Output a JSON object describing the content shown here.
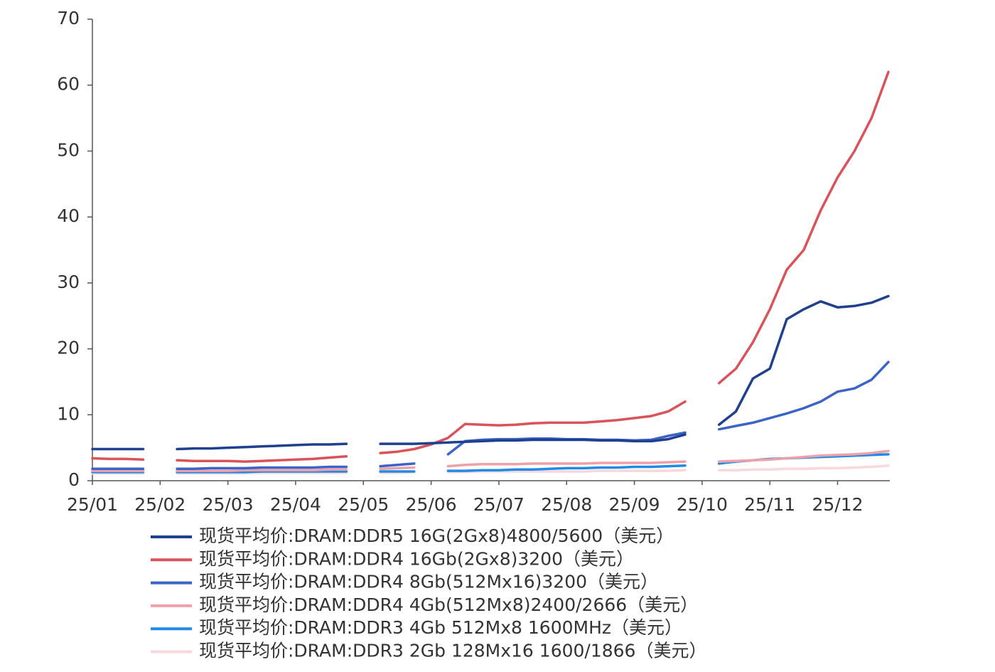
{
  "chart_data": {
    "type": "line",
    "categories": [
      "25/01",
      null,
      null,
      null,
      "25/02",
      null,
      null,
      null,
      "25/03",
      null,
      null,
      null,
      "25/04",
      null,
      null,
      null,
      "25/05",
      null,
      null,
      null,
      "25/06",
      null,
      null,
      null,
      "25/07",
      null,
      null,
      null,
      "25/08",
      null,
      null,
      null,
      "25/09",
      null,
      null,
      null,
      "25/10",
      null,
      null,
      null,
      "25/11",
      null,
      null,
      null,
      "25/12",
      null,
      null,
      null
    ],
    "ylim": [
      0,
      70
    ],
    "yticks": [
      0,
      10,
      20,
      30,
      40,
      50,
      60,
      70
    ],
    "grid": false,
    "legend": "bottom",
    "series": [
      {
        "name": "现货平均价:DRAM:DDR5 16G(2Gx8)4800/5600（美元）",
        "color": "#1f3f8f",
        "values": [
          4.8,
          4.8,
          4.8,
          4.8,
          null,
          4.8,
          4.9,
          4.9,
          5.0,
          5.1,
          5.2,
          5.3,
          5.4,
          5.5,
          5.5,
          5.6,
          null,
          5.6,
          5.6,
          5.6,
          5.7,
          5.8,
          5.9,
          6.0,
          6.1,
          6.1,
          6.2,
          6.2,
          6.2,
          6.2,
          6.1,
          6.1,
          6.0,
          6.0,
          6.3,
          7.0,
          null,
          8.5,
          10.5,
          15.5,
          17,
          24.5,
          26,
          27.2,
          26.3,
          26.5,
          27,
          28
        ]
      },
      {
        "name": "现货平均价:DRAM:DDR4 16Gb(2Gx8)3200（美元）",
        "color": "#d9535a",
        "values": [
          3.4,
          3.3,
          3.3,
          3.2,
          null,
          3.1,
          3.0,
          3.0,
          3.0,
          2.9,
          3.0,
          3.1,
          3.2,
          3.3,
          3.5,
          3.7,
          null,
          4.2,
          4.4,
          4.8,
          5.5,
          6.5,
          8.6,
          8.5,
          8.4,
          8.5,
          8.7,
          8.8,
          8.8,
          8.8,
          9.0,
          9.2,
          9.5,
          9.8,
          10.5,
          12,
          null,
          14.8,
          17,
          21,
          26,
          32,
          35,
          41,
          46,
          50,
          55,
          62
        ]
      },
      {
        "name": "现货平均价:DRAM:DDR4 8Gb(512Mx16)3200（美元）",
        "color": "#3a64c8",
        "values": [
          1.8,
          1.8,
          1.8,
          1.8,
          null,
          1.8,
          1.8,
          1.9,
          1.9,
          1.9,
          2.0,
          2.0,
          2.0,
          2.0,
          2.1,
          2.1,
          null,
          2.2,
          2.4,
          2.6,
          null,
          4.0,
          6.0,
          6.2,
          6.3,
          6.3,
          6.4,
          6.4,
          6.3,
          6.3,
          6.2,
          6.2,
          6.1,
          6.2,
          6.8,
          7.3,
          null,
          7.8,
          8.3,
          8.8,
          9.5,
          10.2,
          11,
          12,
          13.5,
          14,
          15.3,
          18
        ]
      },
      {
        "name": "现货平均价:DRAM:DDR4 4Gb(512Mx8)2400/2666（美元）",
        "color": "#f0a0a8",
        "values": [
          1.5,
          1.5,
          1.5,
          1.5,
          null,
          1.5,
          1.5,
          1.5,
          1.5,
          1.6,
          1.6,
          1.6,
          1.6,
          1.6,
          1.7,
          1.7,
          null,
          1.8,
          1.9,
          2.0,
          null,
          2.2,
          2.4,
          2.5,
          2.5,
          2.5,
          2.6,
          2.6,
          2.6,
          2.6,
          2.7,
          2.7,
          2.7,
          2.7,
          2.8,
          2.9,
          null,
          2.9,
          3.0,
          3.1,
          3.2,
          3.4,
          3.6,
          3.8,
          3.9,
          4.0,
          4.2,
          4.5
        ]
      },
      {
        "name": "现货平均价:DRAM:DDR3 4Gb 512Mx8 1600MHz（美元）",
        "color": "#1f8be8",
        "values": [
          1.3,
          1.3,
          1.3,
          1.3,
          null,
          1.3,
          1.3,
          1.3,
          1.3,
          1.3,
          1.4,
          1.4,
          1.4,
          1.4,
          1.4,
          1.4,
          null,
          1.4,
          1.4,
          1.4,
          null,
          1.5,
          1.5,
          1.6,
          1.6,
          1.7,
          1.7,
          1.8,
          1.9,
          1.9,
          2.0,
          2.0,
          2.1,
          2.1,
          2.2,
          2.3,
          null,
          2.6,
          2.9,
          3.1,
          3.3,
          3.4,
          3.5,
          3.6,
          3.7,
          3.8,
          3.9,
          4.0
        ]
      },
      {
        "name": "现货平均价:DRAM:DDR3 2Gb 128Mx16 1600/1866（美元）",
        "color": "#f8d8dc",
        "values": [
          1.1,
          1.1,
          1.1,
          1.1,
          null,
          1.1,
          1.1,
          1.1,
          1.1,
          1.1,
          1.2,
          1.2,
          1.2,
          1.2,
          1.2,
          1.2,
          null,
          1.2,
          1.2,
          1.3,
          null,
          1.3,
          1.3,
          1.4,
          1.4,
          1.4,
          1.4,
          1.4,
          1.4,
          1.4,
          1.5,
          1.5,
          1.5,
          1.5,
          1.5,
          1.6,
          null,
          1.6,
          1.6,
          1.7,
          1.7,
          1.8,
          1.8,
          1.9,
          1.9,
          2.0,
          2.1,
          2.3
        ]
      }
    ]
  }
}
